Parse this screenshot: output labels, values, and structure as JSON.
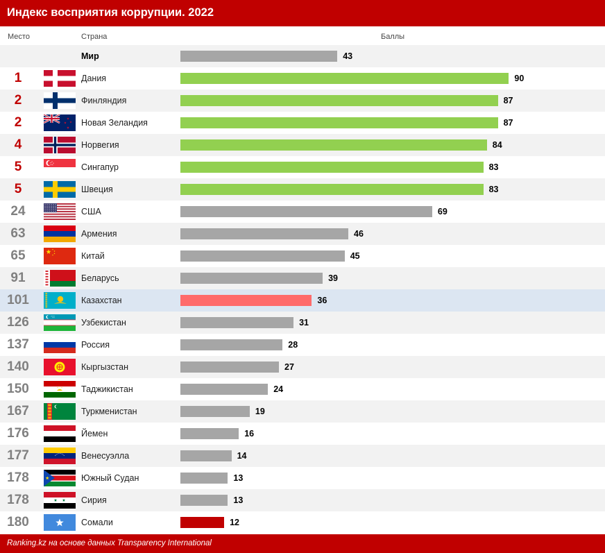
{
  "header": {
    "title": "Индекс восприятия коррупции. 2022"
  },
  "columns": {
    "rank": "Место",
    "country": "Страна",
    "score": "Баллы"
  },
  "footer": {
    "source": "Ranking.kz на основе данных Transparency International"
  },
  "colors": {
    "header_bg": "#c00000",
    "rank_top": "#c00000",
    "rank_other": "#808080",
    "bar_top": "#92d050",
    "bar_default": "#a6a6a6",
    "bar_highlight": "#ff6b6b",
    "bar_last": "#c00000",
    "row_alt": "#f2f2f2",
    "row_highlight": "#dce6f2"
  },
  "chart_data": {
    "type": "bar",
    "orientation": "horizontal",
    "title": "Индекс восприятия коррупции. 2022",
    "xlabel": "Баллы",
    "xlim": [
      0,
      100
    ],
    "grid": false,
    "legend": "none",
    "rows": [
      {
        "rank": "",
        "country": "Мир",
        "flag": "world",
        "value": 43,
        "style": "world"
      },
      {
        "rank": "1",
        "country": "Дания",
        "flag": "denmark-flag",
        "value": 90,
        "style": "top"
      },
      {
        "rank": "2",
        "country": "Финляндия",
        "flag": "finland-flag",
        "value": 87,
        "style": "top"
      },
      {
        "rank": "2",
        "country": "Новая Зеландия",
        "flag": "new-zealand-flag",
        "value": 87,
        "style": "top"
      },
      {
        "rank": "4",
        "country": "Норвегия",
        "flag": "norway-flag",
        "value": 84,
        "style": "top"
      },
      {
        "rank": "5",
        "country": "Сингапур",
        "flag": "singapore-flag",
        "value": 83,
        "style": "top"
      },
      {
        "rank": "5",
        "country": "Швеция",
        "flag": "sweden-flag",
        "value": 83,
        "style": "top"
      },
      {
        "rank": "24",
        "country": "США",
        "flag": "usa-flag",
        "value": 69,
        "style": "default"
      },
      {
        "rank": "63",
        "country": "Армения",
        "flag": "armenia-flag",
        "value": 46,
        "style": "default"
      },
      {
        "rank": "65",
        "country": "Китай",
        "flag": "china-flag",
        "value": 45,
        "style": "default"
      },
      {
        "rank": "91",
        "country": "Беларусь",
        "flag": "belarus-flag",
        "value": 39,
        "style": "default"
      },
      {
        "rank": "101",
        "country": "Казахстан",
        "flag": "kazakhstan-flag",
        "value": 36,
        "style": "highlight"
      },
      {
        "rank": "126",
        "country": "Узбекистан",
        "flag": "uzbekistan-flag",
        "value": 31,
        "style": "default"
      },
      {
        "rank": "137",
        "country": "Россия",
        "flag": "russia-flag",
        "value": 28,
        "style": "default"
      },
      {
        "rank": "140",
        "country": "Кыргызстан",
        "flag": "kyrgyzstan-flag",
        "value": 27,
        "style": "default"
      },
      {
        "rank": "150",
        "country": "Таджикистан",
        "flag": "tajikistan-flag",
        "value": 24,
        "style": "default"
      },
      {
        "rank": "167",
        "country": "Туркменистан",
        "flag": "turkmenistan-flag",
        "value": 19,
        "style": "default"
      },
      {
        "rank": "176",
        "country": "Йемен",
        "flag": "yemen-flag",
        "value": 16,
        "style": "default"
      },
      {
        "rank": "177",
        "country": "Венесуэлла",
        "flag": "venezuela-flag",
        "value": 14,
        "style": "default"
      },
      {
        "rank": "178",
        "country": "Южный Судан",
        "flag": "south-sudan-flag",
        "value": 13,
        "style": "default"
      },
      {
        "rank": "178",
        "country": "Сирия",
        "flag": "syria-flag",
        "value": 13,
        "style": "default"
      },
      {
        "rank": "180",
        "country": "Сомали",
        "flag": "somalia-flag",
        "value": 12,
        "style": "last"
      }
    ]
  }
}
